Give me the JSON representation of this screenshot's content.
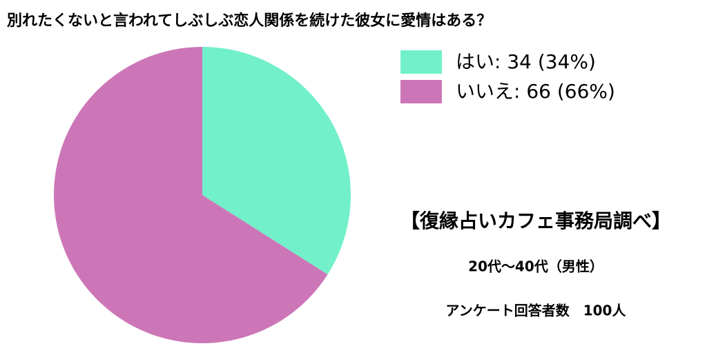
{
  "chart_data": {
    "type": "pie",
    "title": "別れたくないと言われてしぶしぶ恋人関係を続けた彼女に愛情はある？",
    "categories": [
      "はい: 34 (34%)",
      "いいえ: 66 (66%)"
    ],
    "values": [
      34,
      66
    ],
    "colors": [
      "#72f0c9",
      "#cc76b8"
    ],
    "annotations": [
      "【復縁占いカフェ事務局調べ】",
      "20代〜40代（男性）",
      "アンケート回答者数　100人"
    ]
  }
}
